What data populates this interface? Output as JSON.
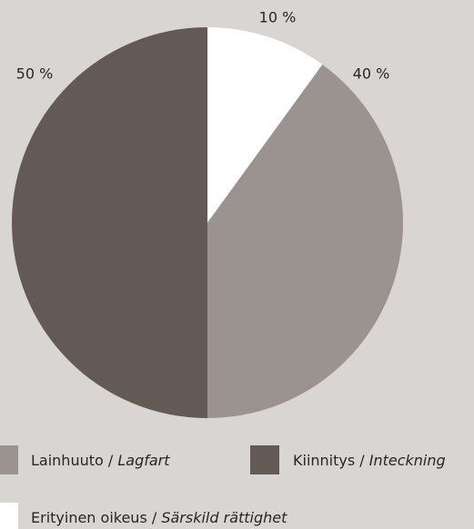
{
  "chart_data": {
    "type": "pie",
    "categories": [
      "Erityinen oikeus / Särskild rättighet",
      "Lainhuuto / Lagfart",
      "Kiinnitys / Inteckning"
    ],
    "values": [
      10,
      40,
      50
    ],
    "value_labels": [
      "10 %",
      "40 %",
      "50 %"
    ],
    "colors": [
      "#ffffff",
      "#9b9390",
      "#645a55"
    ]
  }
}
